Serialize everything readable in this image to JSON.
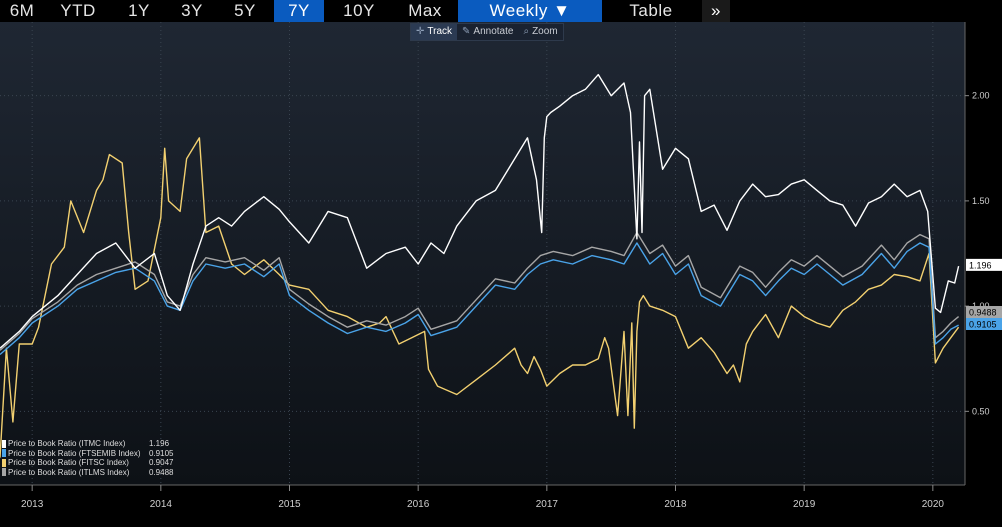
{
  "tabs": [
    {
      "label": "6M",
      "active": false
    },
    {
      "label": "YTD",
      "active": false
    },
    {
      "label": "1Y",
      "active": false
    },
    {
      "label": "3Y",
      "active": false
    },
    {
      "label": "5Y",
      "active": false
    },
    {
      "label": "7Y",
      "active": true
    },
    {
      "label": "10Y",
      "active": false
    },
    {
      "label": "Max",
      "active": false
    }
  ],
  "frequency_label": "Weekly ▼",
  "table_label": "Table",
  "more_label": "»",
  "toolbar": {
    "track": "Track",
    "annotate": "Annotate",
    "zoom": "Zoom"
  },
  "legend": [
    {
      "name": "Price to Book Ratio (ITMC Index)",
      "value": "1.196"
    },
    {
      "name": "Price to Book Ratio (FTSEMIB Index)",
      "value": "0.9105"
    },
    {
      "name": "Price to Book Ratio (FITSC Index)",
      "value": "0.9047"
    },
    {
      "name": "Price to Book Ratio (ITLMS Index)",
      "value": "0.9488"
    }
  ],
  "colors": {
    "background": "#151b22",
    "ITMC": "#ffffff",
    "FTSEMIB": "#4aa3e8",
    "FITSC": "#f2d070",
    "ITLMS": "#a6a6a6",
    "active_tab": "#0a5bbf"
  },
  "chart_data": {
    "type": "line",
    "x_unit": "year (decimal)",
    "xlim": [
      2012.75,
      2020.25
    ],
    "ylim": [
      0.15,
      2.35
    ],
    "y_ticks": [
      "2.00",
      "1.50",
      "1.00",
      "0.50"
    ],
    "x_ticks": [
      "2013",
      "2014",
      "2015",
      "2016",
      "2017",
      "2018",
      "2019",
      "2020"
    ],
    "end_labels": [
      "1.196",
      "0.9488",
      "0.9105"
    ],
    "grid": true,
    "legend_position": "bottom-left",
    "series": [
      {
        "name": "ITMC",
        "x": [
          2012.75,
          2012.9,
          2013.0,
          2013.2,
          2013.35,
          2013.5,
          2013.65,
          2013.8,
          2013.95,
          2014.05,
          2014.15,
          2014.25,
          2014.35,
          2014.45,
          2014.55,
          2014.65,
          2014.8,
          2014.92,
          2015.0,
          2015.15,
          2015.3,
          2015.45,
          2015.6,
          2015.75,
          2015.9,
          2016.0,
          2016.1,
          2016.2,
          2016.3,
          2016.45,
          2016.6,
          2016.75,
          2016.85,
          2016.92,
          2016.96,
          2016.98,
          2017.0,
          2017.03,
          2017.1,
          2017.2,
          2017.3,
          2017.4,
          2017.5,
          2017.6,
          2017.65,
          2017.7,
          2017.72,
          2017.74,
          2017.76,
          2017.8,
          2017.9,
          2018.0,
          2018.1,
          2018.2,
          2018.3,
          2018.4,
          2018.5,
          2018.6,
          2018.7,
          2018.8,
          2018.9,
          2019.0,
          2019.1,
          2019.2,
          2019.3,
          2019.4,
          2019.5,
          2019.6,
          2019.7,
          2019.8,
          2019.9,
          2019.96,
          2020.02,
          2020.06,
          2020.12,
          2020.17,
          2020.2
        ],
        "y": [
          0.8,
          0.88,
          0.95,
          1.05,
          1.15,
          1.25,
          1.3,
          1.18,
          1.25,
          1.05,
          0.98,
          1.2,
          1.38,
          1.42,
          1.38,
          1.45,
          1.52,
          1.46,
          1.4,
          1.3,
          1.45,
          1.42,
          1.18,
          1.25,
          1.28,
          1.2,
          1.3,
          1.25,
          1.38,
          1.5,
          1.55,
          1.7,
          1.8,
          1.6,
          1.35,
          1.8,
          1.9,
          1.92,
          1.95,
          2.0,
          2.03,
          2.1,
          2.0,
          2.06,
          1.92,
          1.32,
          1.78,
          1.35,
          2.0,
          2.03,
          1.65,
          1.75,
          1.7,
          1.45,
          1.48,
          1.36,
          1.5,
          1.58,
          1.52,
          1.53,
          1.58,
          1.6,
          1.55,
          1.5,
          1.48,
          1.38,
          1.49,
          1.52,
          1.58,
          1.52,
          1.55,
          1.45,
          0.99,
          0.97,
          1.12,
          1.11,
          1.19
        ]
      },
      {
        "name": "FTSEMIB",
        "x": [
          2012.75,
          2012.9,
          2013.0,
          2013.2,
          2013.35,
          2013.5,
          2013.65,
          2013.8,
          2013.95,
          2014.05,
          2014.15,
          2014.25,
          2014.35,
          2014.5,
          2014.65,
          2014.8,
          2014.92,
          2015.0,
          2015.15,
          2015.3,
          2015.45,
          2015.6,
          2015.75,
          2015.9,
          2016.0,
          2016.1,
          2016.2,
          2016.3,
          2016.45,
          2016.6,
          2016.75,
          2016.85,
          2016.95,
          2017.05,
          2017.2,
          2017.35,
          2017.5,
          2017.6,
          2017.7,
          2017.8,
          2017.9,
          2018.0,
          2018.1,
          2018.2,
          2018.35,
          2018.5,
          2018.6,
          2018.7,
          2018.8,
          2018.9,
          2019.0,
          2019.1,
          2019.2,
          2019.3,
          2019.45,
          2019.6,
          2019.7,
          2019.8,
          2019.9,
          2019.97,
          2020.02,
          2020.08,
          2020.14,
          2020.2
        ],
        "y": [
          0.77,
          0.85,
          0.92,
          1.0,
          1.08,
          1.12,
          1.16,
          1.18,
          1.12,
          1.0,
          0.98,
          1.12,
          1.2,
          1.18,
          1.2,
          1.14,
          1.2,
          1.05,
          0.98,
          0.92,
          0.87,
          0.9,
          0.88,
          0.92,
          0.96,
          0.86,
          0.88,
          0.9,
          1.0,
          1.1,
          1.08,
          1.15,
          1.2,
          1.22,
          1.2,
          1.24,
          1.22,
          1.2,
          1.3,
          1.2,
          1.25,
          1.15,
          1.2,
          1.05,
          1.0,
          1.15,
          1.12,
          1.05,
          1.12,
          1.18,
          1.15,
          1.2,
          1.15,
          1.1,
          1.15,
          1.25,
          1.18,
          1.26,
          1.3,
          1.28,
          0.82,
          0.85,
          0.89,
          0.91
        ]
      },
      {
        "name": "FITSC",
        "x": [
          2012.75,
          2012.8,
          2012.85,
          2012.9,
          2013.0,
          2013.05,
          2013.15,
          2013.25,
          2013.3,
          2013.4,
          2013.5,
          2013.55,
          2013.6,
          2013.7,
          2013.75,
          2013.8,
          2013.9,
          2014.0,
          2014.03,
          2014.06,
          2014.15,
          2014.2,
          2014.3,
          2014.35,
          2014.45,
          2014.55,
          2014.65,
          2014.8,
          2014.92,
          2015.0,
          2015.15,
          2015.3,
          2015.45,
          2015.6,
          2015.7,
          2015.75,
          2015.85,
          2015.95,
          2016.05,
          2016.08,
          2016.15,
          2016.3,
          2016.45,
          2016.6,
          2016.75,
          2016.8,
          2016.85,
          2016.9,
          2016.95,
          2017.0,
          2017.1,
          2017.2,
          2017.3,
          2017.4,
          2017.45,
          2017.48,
          2017.55,
          2017.6,
          2017.63,
          2017.66,
          2017.68,
          2017.7,
          2017.72,
          2017.75,
          2017.8,
          2017.9,
          2018.0,
          2018.1,
          2018.2,
          2018.3,
          2018.4,
          2018.45,
          2018.5,
          2018.55,
          2018.6,
          2018.7,
          2018.8,
          2018.9,
          2019.0,
          2019.1,
          2019.2,
          2019.3,
          2019.4,
          2019.5,
          2019.6,
          2019.7,
          2019.8,
          2019.9,
          2019.97,
          2020.02,
          2020.08,
          2020.14,
          2020.2
        ],
        "y": [
          0.28,
          0.8,
          0.45,
          0.82,
          0.82,
          0.9,
          1.2,
          1.28,
          1.5,
          1.35,
          1.55,
          1.6,
          1.72,
          1.68,
          1.35,
          1.08,
          1.12,
          1.42,
          1.75,
          1.5,
          1.45,
          1.7,
          1.8,
          1.35,
          1.38,
          1.2,
          1.15,
          1.22,
          1.15,
          1.1,
          1.08,
          0.98,
          0.95,
          0.9,
          0.92,
          0.95,
          0.82,
          0.85,
          0.88,
          0.7,
          0.62,
          0.58,
          0.65,
          0.72,
          0.8,
          0.72,
          0.68,
          0.76,
          0.7,
          0.62,
          0.68,
          0.72,
          0.72,
          0.75,
          0.85,
          0.8,
          0.48,
          0.88,
          0.48,
          0.92,
          0.42,
          0.88,
          1.02,
          1.05,
          1.0,
          0.98,
          0.95,
          0.8,
          0.85,
          0.78,
          0.68,
          0.72,
          0.64,
          0.82,
          0.88,
          0.96,
          0.85,
          1.0,
          0.95,
          0.92,
          0.9,
          0.98,
          1.02,
          1.08,
          1.1,
          1.15,
          1.14,
          1.12,
          1.25,
          0.73,
          0.8,
          0.85,
          0.9
        ]
      },
      {
        "name": "ITLMS",
        "x": [
          2012.75,
          2012.9,
          2013.0,
          2013.2,
          2013.35,
          2013.5,
          2013.65,
          2013.8,
          2013.95,
          2014.05,
          2014.15,
          2014.25,
          2014.35,
          2014.5,
          2014.65,
          2014.8,
          2014.92,
          2015.0,
          2015.15,
          2015.3,
          2015.45,
          2015.6,
          2015.75,
          2015.9,
          2016.0,
          2016.1,
          2016.2,
          2016.3,
          2016.45,
          2016.6,
          2016.75,
          2016.85,
          2016.95,
          2017.05,
          2017.2,
          2017.35,
          2017.5,
          2017.6,
          2017.7,
          2017.8,
          2017.9,
          2018.0,
          2018.1,
          2018.2,
          2018.35,
          2018.5,
          2018.6,
          2018.7,
          2018.8,
          2018.9,
          2019.0,
          2019.1,
          2019.2,
          2019.3,
          2019.45,
          2019.6,
          2019.7,
          2019.8,
          2019.9,
          2019.97,
          2020.02,
          2020.08,
          2020.14,
          2020.2
        ],
        "y": [
          0.79,
          0.87,
          0.94,
          1.02,
          1.1,
          1.15,
          1.18,
          1.21,
          1.15,
          1.02,
          1.0,
          1.15,
          1.23,
          1.21,
          1.23,
          1.17,
          1.23,
          1.08,
          1.01,
          0.95,
          0.9,
          0.93,
          0.91,
          0.95,
          0.99,
          0.89,
          0.91,
          0.93,
          1.03,
          1.13,
          1.11,
          1.18,
          1.24,
          1.26,
          1.24,
          1.28,
          1.26,
          1.24,
          1.35,
          1.25,
          1.29,
          1.19,
          1.24,
          1.09,
          1.04,
          1.19,
          1.16,
          1.09,
          1.16,
          1.22,
          1.19,
          1.24,
          1.19,
          1.14,
          1.19,
          1.29,
          1.22,
          1.3,
          1.34,
          1.32,
          0.85,
          0.88,
          0.92,
          0.95
        ]
      }
    ]
  }
}
